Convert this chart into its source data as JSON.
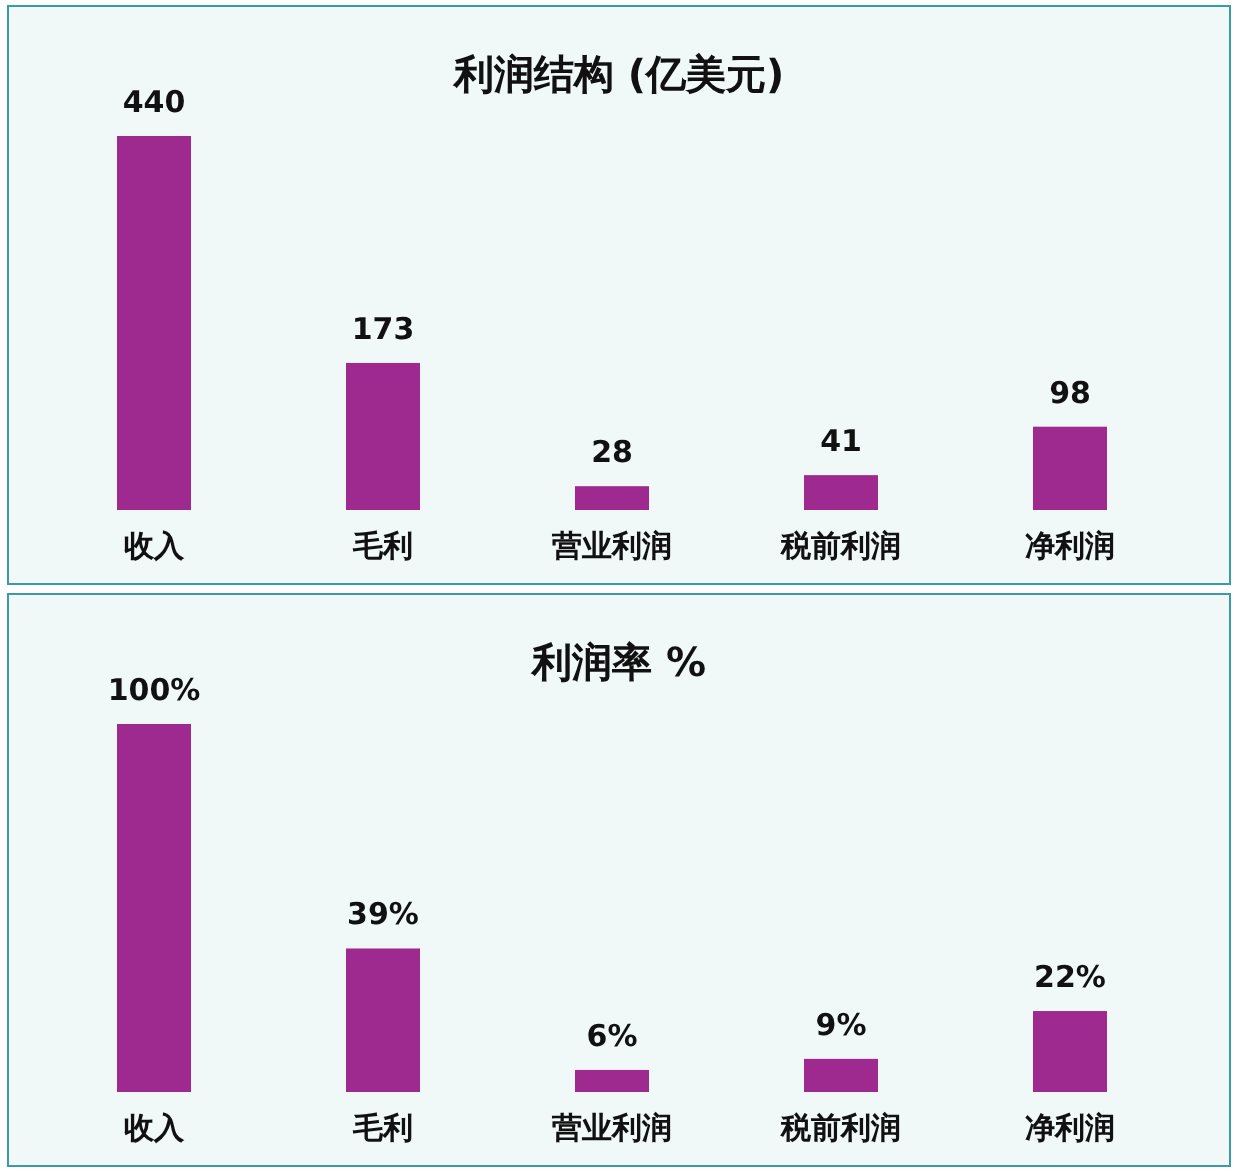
{
  "chart_data": [
    {
      "type": "bar",
      "title": "利润结构 (亿美元)",
      "categories": [
        "收入",
        "毛利",
        "营业利润",
        "税前利润",
        "净利润"
      ],
      "values": [
        440,
        173,
        28,
        41,
        98
      ],
      "color": "#9e2a8f",
      "data_labels": true
    },
    {
      "type": "bar",
      "title": "利润率 %",
      "categories": [
        "收入",
        "毛利",
        "营业利润",
        "税前利润",
        "净利润"
      ],
      "values": [
        100,
        39,
        6,
        9,
        22
      ],
      "color": "#9e2a8f",
      "value_labels": [
        "100%",
        "39%",
        "6%",
        "9%",
        "22%"
      ]
    }
  ]
}
